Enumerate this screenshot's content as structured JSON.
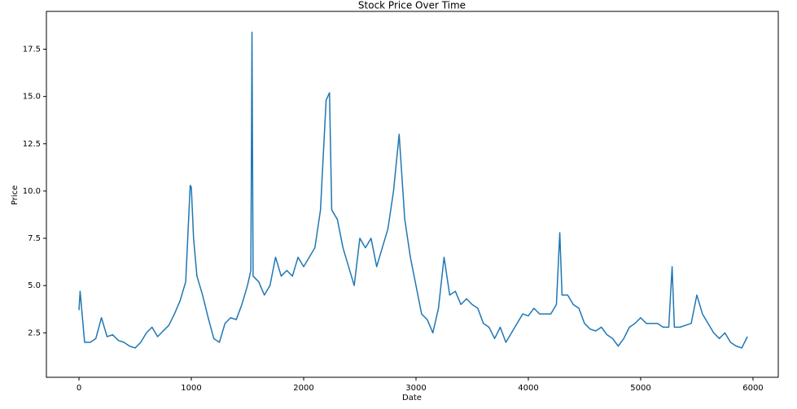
{
  "chart_data": {
    "type": "line",
    "title": "Stock Price Over Time",
    "xlabel": "Date",
    "ylabel": "Price",
    "x": [
      0,
      10,
      50,
      100,
      150,
      200,
      250,
      300,
      350,
      400,
      450,
      500,
      550,
      600,
      650,
      700,
      750,
      800,
      850,
      900,
      950,
      990,
      1000,
      1020,
      1050,
      1100,
      1150,
      1200,
      1250,
      1300,
      1350,
      1400,
      1450,
      1500,
      1530,
      1540,
      1550,
      1600,
      1650,
      1700,
      1750,
      1800,
      1850,
      1900,
      1950,
      2000,
      2050,
      2100,
      2150,
      2180,
      2200,
      2230,
      2250,
      2300,
      2350,
      2400,
      2450,
      2500,
      2550,
      2600,
      2650,
      2700,
      2750,
      2800,
      2850,
      2900,
      2950,
      3000,
      3050,
      3100,
      3150,
      3200,
      3250,
      3300,
      3350,
      3400,
      3450,
      3500,
      3550,
      3600,
      3650,
      3700,
      3750,
      3800,
      3850,
      3900,
      3950,
      4000,
      4050,
      4100,
      4150,
      4200,
      4250,
      4280,
      4300,
      4350,
      4400,
      4450,
      4500,
      4550,
      4600,
      4650,
      4700,
      4750,
      4800,
      4850,
      4900,
      4950,
      5000,
      5050,
      5100,
      5150,
      5200,
      5250,
      5280,
      5300,
      5350,
      5400,
      5450,
      5500,
      5550,
      5600,
      5650,
      5700,
      5750,
      5800,
      5850,
      5900,
      5950
    ],
    "values": [
      3.7,
      4.7,
      2.0,
      2.0,
      2.2,
      3.3,
      2.3,
      2.4,
      2.1,
      2.0,
      1.8,
      1.7,
      2.0,
      2.5,
      2.8,
      2.3,
      2.6,
      2.9,
      3.5,
      4.2,
      5.2,
      10.3,
      10.2,
      7.5,
      5.5,
      4.5,
      3.3,
      2.2,
      2.0,
      3.0,
      3.3,
      3.2,
      4.0,
      5.0,
      5.8,
      18.4,
      5.5,
      5.2,
      4.5,
      5.0,
      6.5,
      5.5,
      5.8,
      5.5,
      6.5,
      6.0,
      6.5,
      7.0,
      9.0,
      12.5,
      14.8,
      15.2,
      9.0,
      8.5,
      7.0,
      6.0,
      5.0,
      7.5,
      7.0,
      7.5,
      6.0,
      7.0,
      8.0,
      10.0,
      13.0,
      8.5,
      6.5,
      5.0,
      3.5,
      3.2,
      2.5,
      3.8,
      6.5,
      4.5,
      4.7,
      4.0,
      4.3,
      4.0,
      3.8,
      3.0,
      2.8,
      2.2,
      2.8,
      2.0,
      2.5,
      3.0,
      3.5,
      3.4,
      3.8,
      3.5,
      3.5,
      3.5,
      4.0,
      7.8,
      4.5,
      4.5,
      4.0,
      3.8,
      3.0,
      2.7,
      2.6,
      2.8,
      2.4,
      2.2,
      1.8,
      2.2,
      2.8,
      3.0,
      3.3,
      3.0,
      3.0,
      3.0,
      2.8,
      2.8,
      6.0,
      2.8,
      2.8,
      2.9,
      3.0,
      4.5,
      3.5,
      3.0,
      2.5,
      2.2,
      2.5,
      2.0,
      1.8,
      1.7,
      2.3
    ],
    "color": "#1f77b4",
    "xlim": [
      -290,
      6225
    ],
    "xticks": [
      0,
      1000,
      2000,
      3000,
      4000,
      5000,
      6000
    ],
    "ylim": [
      0.15,
      19.5
    ],
    "yticks": [
      2.5,
      {
        "value": 5,
        "label": "5.0"
      },
      7.5,
      {
        "value": 10,
        "label": "10.0"
      },
      12.5,
      {
        "value": 15,
        "label": "15.0"
      },
      17.5
    ]
  }
}
